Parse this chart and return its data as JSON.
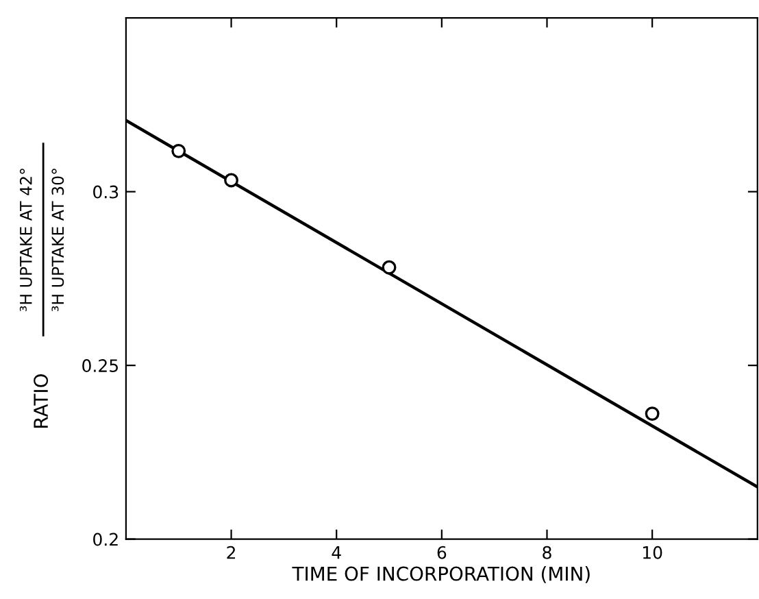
{
  "chart_data": {
    "type": "scatter",
    "xlabel": "TIME OF INCORPORATION (MIN)",
    "ylabel": "RATIO",
    "annotations": [
      "³H UPTAKE AT 42°",
      "³H UPTAKE AT 30°"
    ],
    "series": [
      {
        "color": "#000000",
        "marker": "circle",
        "x": [
          1,
          2,
          5,
          10
        ],
        "values": [
          0.3117,
          0.3033,
          0.2782,
          0.2361
        ]
      },
      {
        "type": "line",
        "color": "#000000",
        "x": [
          0,
          12
        ],
        "values": [
          0.3205,
          0.215
        ]
      }
    ],
    "xlim": [
      0,
      12
    ],
    "ylim": [
      0.2,
      0.35
    ],
    "xticks": [
      2,
      4,
      6,
      8,
      10
    ],
    "yticks": [
      0.2,
      0.25,
      0.3
    ],
    "grid": false,
    "legend": false
  }
}
